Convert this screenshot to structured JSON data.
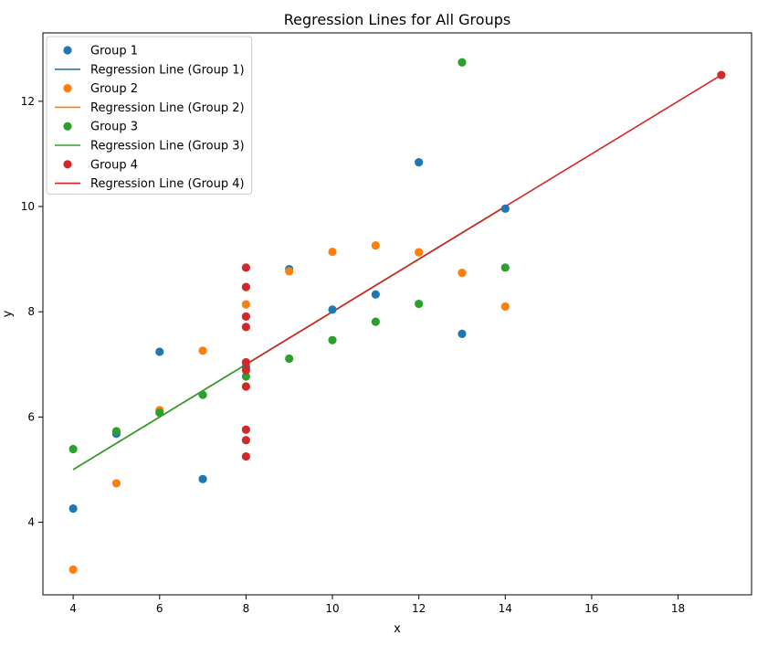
{
  "chart_data": {
    "type": "scatter",
    "title": "Regression Lines for All Groups",
    "xlabel": "x",
    "ylabel": "y",
    "xlim": [
      3.3,
      19.7
    ],
    "ylim": [
      2.62,
      13.3
    ],
    "x_ticks": [
      4,
      6,
      8,
      10,
      12,
      14,
      16,
      18
    ],
    "y_ticks": [
      4,
      6,
      8,
      10,
      12
    ],
    "grid": false,
    "legend_position": "top-left",
    "legend": [
      {
        "label": "Group 1",
        "kind": "marker",
        "color": "#1f77b4"
      },
      {
        "label": "Regression Line (Group 1)",
        "kind": "line",
        "color": "#1f77b4"
      },
      {
        "label": "Group 2",
        "kind": "marker",
        "color": "#ff7f0e"
      },
      {
        "label": "Regression Line (Group 2)",
        "kind": "line",
        "color": "#ff7f0e"
      },
      {
        "label": "Group 3",
        "kind": "marker",
        "color": "#2ca02c"
      },
      {
        "label": "Regression Line (Group 3)",
        "kind": "line",
        "color": "#2ca02c"
      },
      {
        "label": "Group 4",
        "kind": "marker",
        "color": "#d62728"
      },
      {
        "label": "Regression Line (Group 4)",
        "kind": "line",
        "color": "#d62728"
      }
    ],
    "series": [
      {
        "color": "#1f77b4",
        "points": [
          [
            10,
            8.04
          ],
          [
            8,
            6.95
          ],
          [
            13,
            7.58
          ],
          [
            9,
            8.81
          ],
          [
            11,
            8.33
          ],
          [
            14,
            9.96
          ],
          [
            6,
            7.24
          ],
          [
            4,
            4.26
          ],
          [
            12,
            10.84
          ],
          [
            7,
            4.82
          ],
          [
            5,
            5.68
          ]
        ],
        "line": [
          [
            4,
            5.0
          ],
          [
            14,
            10.0
          ]
        ]
      },
      {
        "color": "#ff7f0e",
        "points": [
          [
            10,
            9.14
          ],
          [
            8,
            8.14
          ],
          [
            13,
            8.74
          ],
          [
            9,
            8.77
          ],
          [
            11,
            9.26
          ],
          [
            14,
            8.1
          ],
          [
            6,
            6.13
          ],
          [
            4,
            3.1
          ],
          [
            12,
            9.13
          ],
          [
            7,
            7.26
          ],
          [
            5,
            4.74
          ]
        ],
        "line": [
          [
            4,
            5.0
          ],
          [
            14,
            10.0
          ]
        ]
      },
      {
        "color": "#2ca02c",
        "points": [
          [
            10,
            7.46
          ],
          [
            8,
            6.77
          ],
          [
            13,
            12.74
          ],
          [
            9,
            7.11
          ],
          [
            11,
            7.81
          ],
          [
            14,
            8.84
          ],
          [
            6,
            6.08
          ],
          [
            4,
            5.39
          ],
          [
            12,
            8.15
          ],
          [
            7,
            6.42
          ],
          [
            5,
            5.73
          ]
        ],
        "line": [
          [
            4,
            5.0
          ],
          [
            14,
            10.0
          ]
        ]
      },
      {
        "color": "#d62728",
        "points": [
          [
            8,
            6.58
          ],
          [
            8,
            5.76
          ],
          [
            8,
            7.71
          ],
          [
            8,
            8.84
          ],
          [
            8,
            8.47
          ],
          [
            8,
            7.04
          ],
          [
            8,
            5.25
          ],
          [
            19,
            12.5
          ],
          [
            8,
            5.56
          ],
          [
            8,
            7.91
          ],
          [
            8,
            6.89
          ]
        ],
        "line": [
          [
            8,
            7.0
          ],
          [
            19,
            12.5
          ]
        ]
      }
    ]
  }
}
